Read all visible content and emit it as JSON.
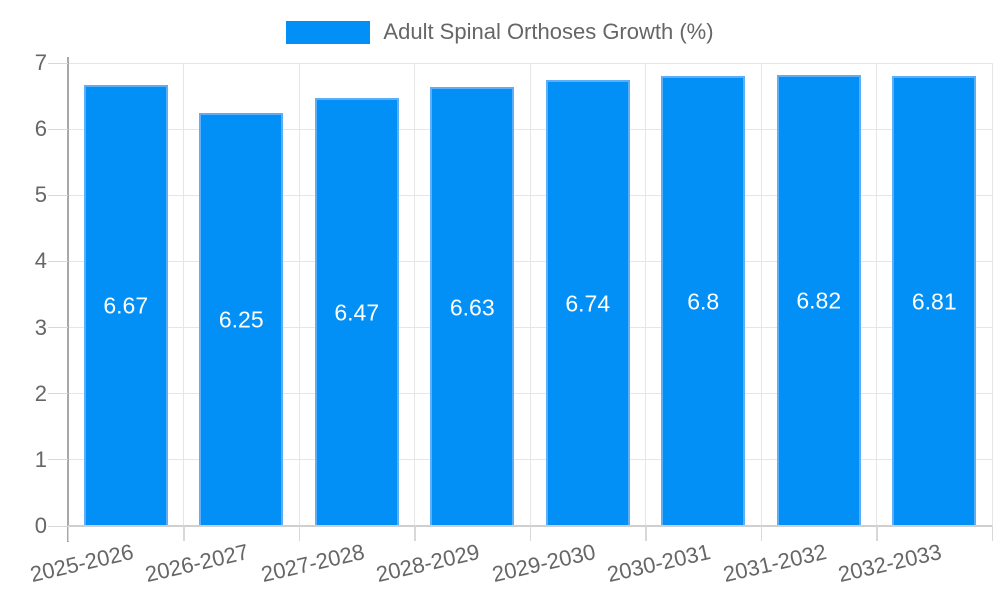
{
  "chart_data": {
    "type": "bar",
    "title": "",
    "legend_label": "Adult Spinal Orthoses Growth (%)",
    "legend_position": "top",
    "categories": [
      "2025-2026",
      "2026-2027",
      "2027-2028",
      "2028-2029",
      "2029-2030",
      "2030-2031",
      "2031-2032",
      "2032-2033"
    ],
    "values": [
      6.67,
      6.25,
      6.47,
      6.63,
      6.74,
      6.8,
      6.82,
      6.81
    ],
    "value_labels": [
      "6.67",
      "6.25",
      "6.47",
      "6.63",
      "6.74",
      "6.8",
      "6.82",
      "6.81"
    ],
    "xlabel": "",
    "ylabel": "",
    "ylim": [
      0,
      7
    ],
    "y_ticks": [
      "0",
      "1",
      "2",
      "3",
      "4",
      "5",
      "6",
      "7"
    ],
    "grid": true,
    "colors": {
      "bar_fill": "#0290F7",
      "bar_border": "#5BAEF7",
      "value_label": "#FFFFFF",
      "axis_text": "#666666",
      "gridline": "#E6E6E6",
      "tick": "#D8D8D8",
      "axis_line": "#A8A8A8",
      "baseline": "#CFCFCF",
      "background": "#FFFFFF"
    }
  }
}
